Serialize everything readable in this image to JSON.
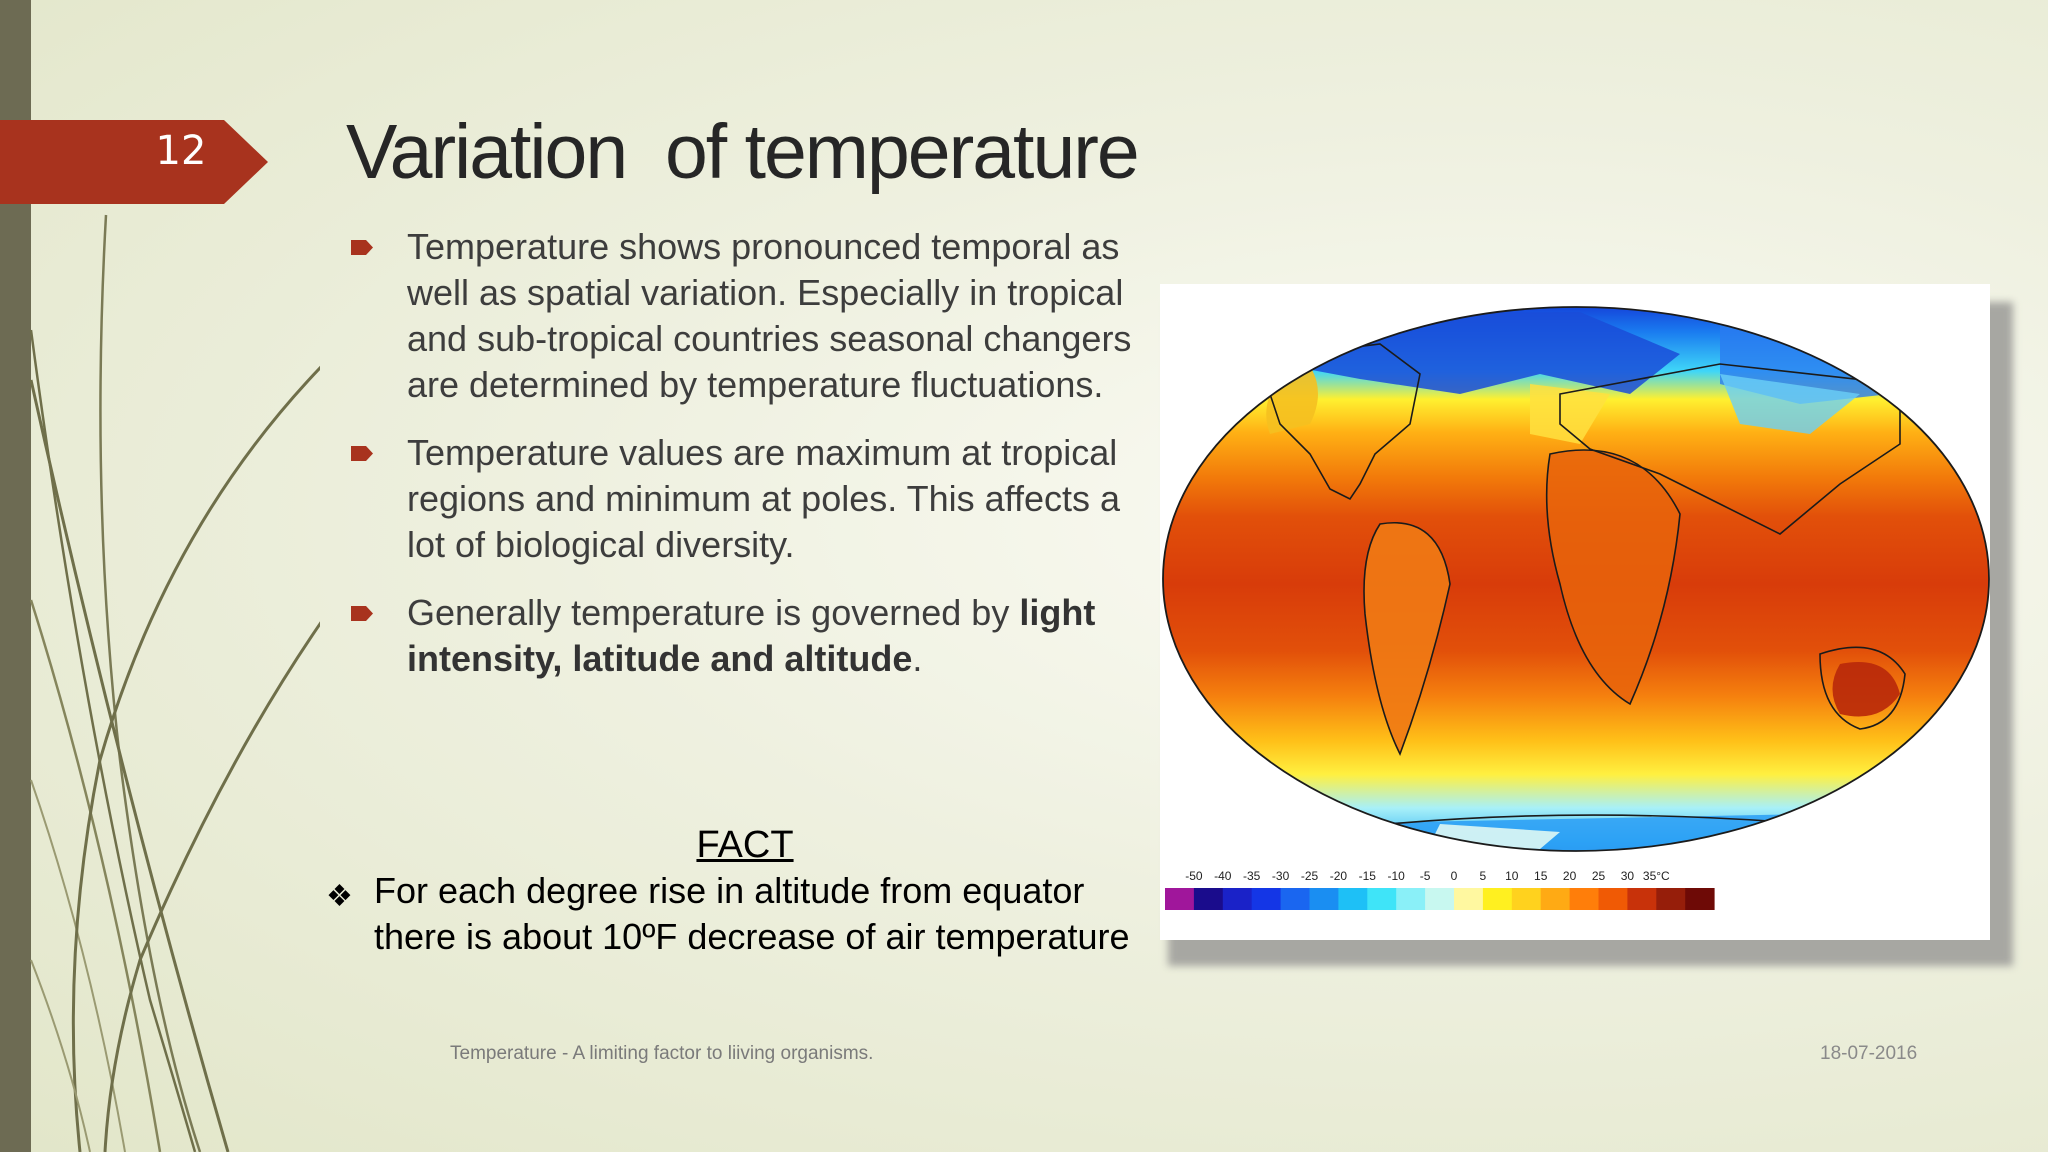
{
  "slide": {
    "number": "12",
    "title": "Variation  of temperature",
    "accent_color": "#a8331e",
    "sidebar_color": "#6d6b53"
  },
  "bullets": [
    {
      "text": "Temperature shows pronounced temporal as well as spatial variation. Especially in tropical and sub-tropical countries seasonal changers are determined by temperature fluctuations."
    },
    {
      "text": "Temperature values are maximum at tropical regions and minimum at poles. This affects a lot of biological diversity."
    },
    {
      "text_before": "Generally temperature is governed by ",
      "text_bold": "light intensity, latitude and altitude",
      "text_after": "."
    }
  ],
  "fact": {
    "heading": "FACT",
    "item": "For each degree rise in altitude from equator there is about 10ºF decrease of air temperature",
    "marker": "diamond-bullet-icon"
  },
  "map": {
    "legend_labels": [
      "-50",
      "-40",
      "-35",
      "-30",
      "-25",
      "-20",
      "-15",
      "-10",
      "-5",
      "0",
      "5",
      "10",
      "15",
      "20",
      "25",
      "30",
      "35°C"
    ],
    "legend_colors": [
      "#a0169b",
      "#1a0c8c",
      "#1a22c8",
      "#1436e6",
      "#1a66f0",
      "#1a8ef2",
      "#1ec0f6",
      "#3fe4f8",
      "#8af0f8",
      "#c8f8f0",
      "#fff8a0",
      "#fff020",
      "#ffd21e",
      "#ffaa14",
      "#ff7e0a",
      "#f05a05",
      "#c8320a",
      "#961e0a",
      "#6e0a06"
    ]
  },
  "footer": {
    "text": "Temperature - A limiting factor to liiving organisms.",
    "date": "18-07-2016"
  }
}
